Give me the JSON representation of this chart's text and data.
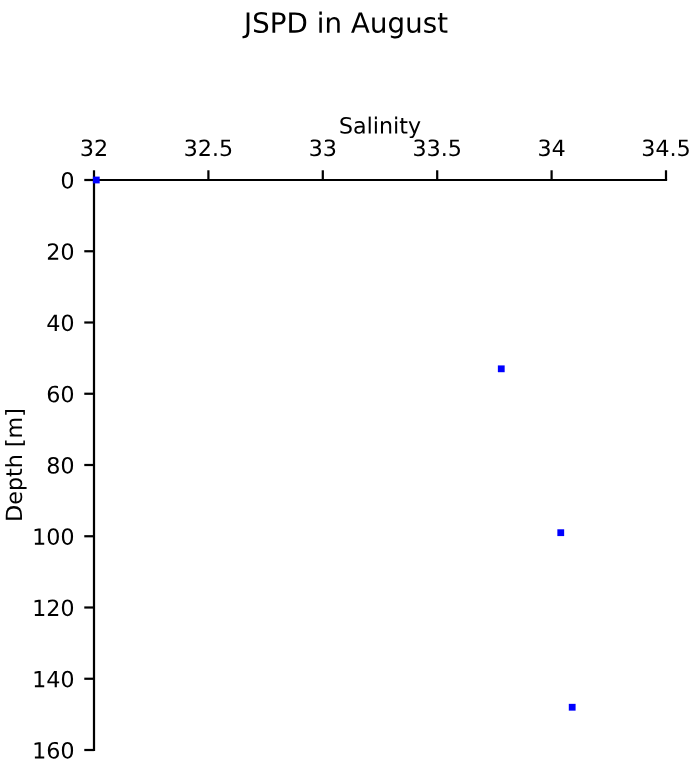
{
  "chart_data": {
    "type": "scatter",
    "title": "JSPD in August",
    "xlabel": "Salinity",
    "ylabel": "Depth [m]",
    "x": [
      32.01,
      33.78,
      34.04,
      34.09
    ],
    "series": [
      {
        "color": "#0000ff",
        "values": [
          0,
          53,
          99,
          148
        ]
      }
    ],
    "xlim": [
      32,
      34.5
    ],
    "xticks": [
      32,
      32.5,
      33,
      33.5,
      34,
      34.5
    ],
    "ylim": [
      160,
      0
    ],
    "yticks": [
      0,
      20,
      40,
      60,
      80,
      100,
      120,
      140,
      160
    ],
    "grid": false,
    "marker": "square"
  }
}
